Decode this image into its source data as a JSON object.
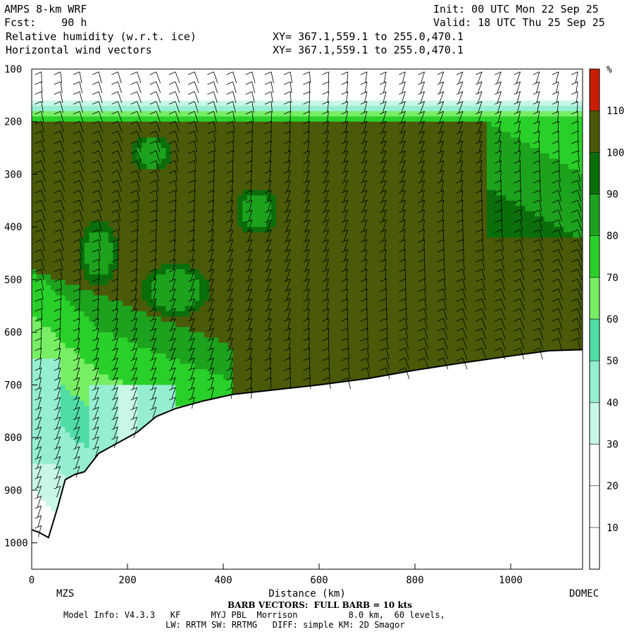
{
  "header": {
    "model": "AMPS 8-km WRF",
    "fcst": "Fcst:    90 h",
    "init": "Init: 00 UTC Mon 22 Sep 25",
    "valid": "Valid: 18 UTC Thu 25 Sep 25",
    "field1": "Relative humidity (w.r.t. ice)",
    "field2": "Horizontal wind vectors",
    "xy1": "XY= 367.1,559.1 to 255.0,470.1",
    "xy2": "XY= 367.1,559.1 to 255.0,470.1"
  },
  "footer": {
    "barb": "BARB VECTORS:  FULL BARB = 10 kts",
    "info1": "Model Info: V4.3.3   KF      MYJ PBL  Morrison          8.0 km,  60 levels,",
    "info2": "LW: RRTM SW: RRTMG   DIFF: simple KM: 2D Smagor"
  },
  "chart_data": {
    "type": "heatmap",
    "title": "Relative humidity (w.r.t. ice)",
    "xlabel": "Distance (km)",
    "ylabel": "",
    "xlim": [
      0,
      1150
    ],
    "ylim": [
      1050,
      100
    ],
    "x_ticks": [
      0,
      200,
      400,
      600,
      800,
      1000
    ],
    "y_ticks": [
      100,
      200,
      300,
      400,
      500,
      600,
      700,
      800,
      900,
      1000
    ],
    "endpoints": {
      "left": "MZS",
      "right": "DOMEC"
    },
    "colorbar": {
      "unit": "%",
      "levels": [
        10,
        20,
        30,
        40,
        50,
        60,
        70,
        80,
        90,
        100,
        110
      ],
      "colors": [
        "#ffffff",
        "#ffffff",
        "#ffffff",
        "#c8f7e6",
        "#96eed2",
        "#50dca5",
        "#78ee64",
        "#2ad02a",
        "#1da21d",
        "#0a6e0a",
        "#4a5a08",
        "#c81e05"
      ]
    },
    "terrain_surface": [
      {
        "x": 0,
        "p": 975
      },
      {
        "x": 15,
        "p": 980
      },
      {
        "x": 35,
        "p": 990
      },
      {
        "x": 55,
        "p": 930
      },
      {
        "x": 70,
        "p": 880
      },
      {
        "x": 90,
        "p": 870
      },
      {
        "x": 110,
        "p": 865
      },
      {
        "x": 140,
        "p": 830
      },
      {
        "x": 180,
        "p": 810
      },
      {
        "x": 220,
        "p": 790
      },
      {
        "x": 260,
        "p": 760
      },
      {
        "x": 300,
        "p": 745
      },
      {
        "x": 360,
        "p": 730
      },
      {
        "x": 420,
        "p": 718
      },
      {
        "x": 500,
        "p": 710
      },
      {
        "x": 600,
        "p": 700
      },
      {
        "x": 700,
        "p": 688
      },
      {
        "x": 800,
        "p": 672
      },
      {
        "x": 900,
        "p": 658
      },
      {
        "x": 1000,
        "p": 645
      },
      {
        "x": 1080,
        "p": 635
      },
      {
        "x": 1150,
        "p": 633
      }
    ],
    "rh_regions": [
      {
        "name": "dry-upper",
        "rh": 0,
        "p_top": 100,
        "p_bottom": 155
      },
      {
        "name": "tropopause-transition",
        "rh": 35,
        "p_top": 155,
        "p_bottom": 200
      },
      {
        "name": "saturated-mid",
        "rh": 105,
        "p_top": 200,
        "p_bottom": 650
      },
      {
        "name": "moist-lower-left",
        "rh": 75,
        "x_range": [
          0,
          400
        ],
        "p_top": 480,
        "p_bottom": 900
      },
      {
        "name": "drier-right-upper",
        "rh": 80,
        "x_range": [
          950,
          1150
        ],
        "p_top": 200,
        "p_bottom": 420
      }
    ],
    "barbs": {
      "full_barb_kts": 10,
      "column_spacing_km": 40
    }
  }
}
